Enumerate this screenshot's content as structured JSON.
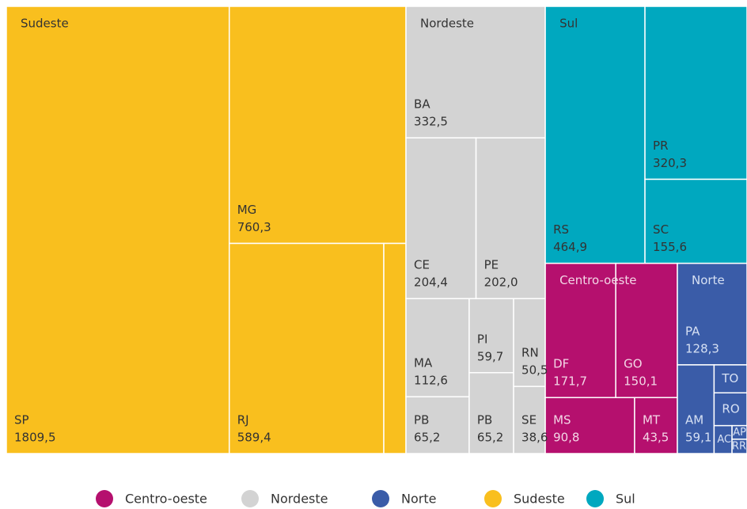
{
  "chart_data": {
    "type": "treemap",
    "groups": [
      {
        "name": "Centro-oeste",
        "color": "#b5106e",
        "categories": [
          "DF",
          "GO",
          "MS",
          "MT"
        ],
        "values": [
          171.7,
          150.1,
          90.8,
          43.5
        ],
        "value_labels": [
          "171,7",
          "150,1",
          "90,8",
          "43,5"
        ]
      },
      {
        "name": "Nordeste",
        "color": "#d3d3d3",
        "categories": [
          "BA",
          "CE",
          "PE",
          "MA",
          "PB",
          "PI",
          "PB",
          "RN",
          "SE"
        ],
        "values": [
          332.5,
          204.4,
          202.0,
          112.6,
          65.2,
          59.7,
          65.2,
          50.5,
          38.6
        ],
        "value_labels": [
          "332,5",
          "204,4",
          "202,0",
          "112,6",
          "65,2",
          "59,7",
          "65,2",
          "50,5",
          "38,6"
        ]
      },
      {
        "name": "Norte",
        "color": "#3a5ca8",
        "categories": [
          "PA",
          "AM",
          "TO",
          "RO",
          "AC",
          "AP",
          "RR"
        ],
        "values": [
          128.3,
          59.1,
          16.7,
          19.6,
          9.1,
          3.7,
          3.9
        ],
        "value_labels": [
          "128,3",
          "59,1",
          null,
          null,
          null,
          null,
          null
        ]
      },
      {
        "name": "Sudeste",
        "color": "#f9bf1e",
        "categories": [
          "SP",
          "MG",
          "RJ",
          null
        ],
        "values": [
          1809.5,
          760.3,
          589.4,
          84.6
        ],
        "value_labels": [
          "1809,5",
          "760,3",
          "589,4",
          null
        ]
      },
      {
        "name": "Sul",
        "color": "#00a8bf",
        "categories": [
          "RS",
          "PR",
          "SC"
        ],
        "values": [
          464.9,
          320.3,
          155.6
        ],
        "value_labels": [
          "464,9",
          "320,3",
          "155,6"
        ]
      }
    ],
    "legend": "bottom"
  }
}
